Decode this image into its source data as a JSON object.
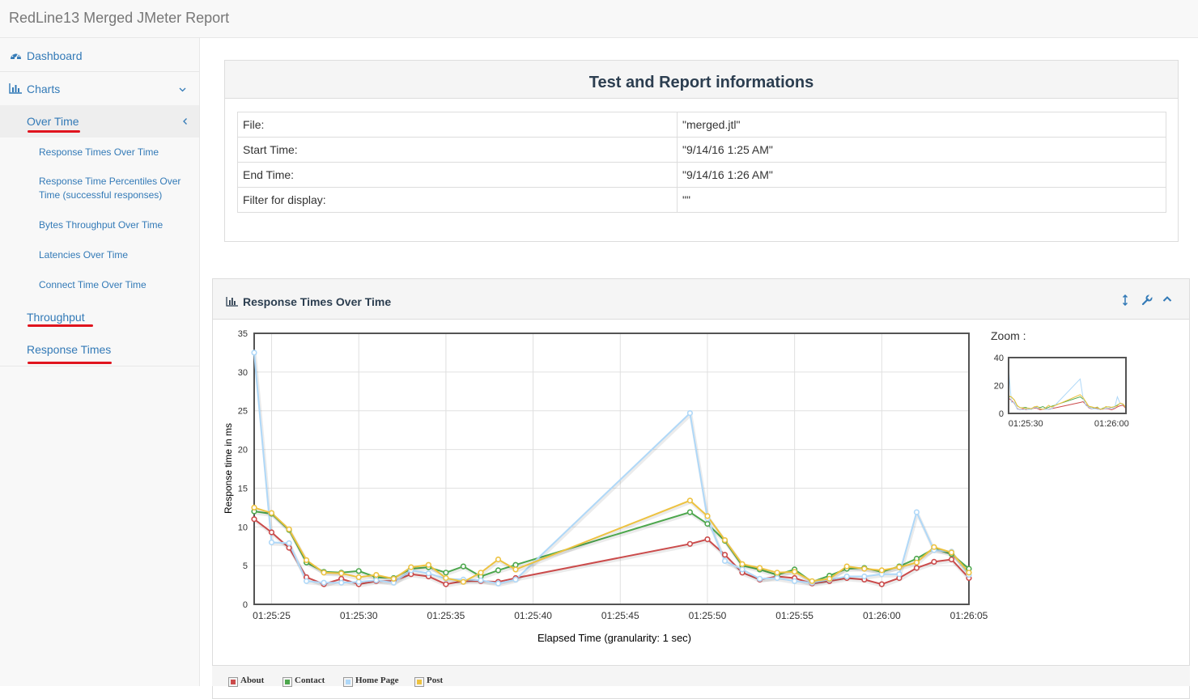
{
  "app": {
    "title": "RedLine13 Merged JMeter Report"
  },
  "sidebar": {
    "dashboard": "Dashboard",
    "charts": "Charts",
    "over_time": "Over Time",
    "sub_items": [
      "Response Times Over Time",
      "Response Time Percentiles Over Time (successful responses)",
      "Bytes Throughput Over Time",
      "Latencies Over Time",
      "Connect Time Over Time"
    ],
    "throughput": "Throughput",
    "response_times": "Response Times"
  },
  "info": {
    "title": "Test and Report informations",
    "rows": [
      {
        "key": "File:",
        "value": "\"merged.jtl\""
      },
      {
        "key": "Start Time:",
        "value": "\"9/14/16 1:25 AM\""
      },
      {
        "key": "End Time:",
        "value": "\"9/14/16 1:26 AM\""
      },
      {
        "key": "Filter for display:",
        "value": "\"\""
      }
    ]
  },
  "chart_panel": {
    "title": "Response Times Over Time",
    "zoom_label": "Zoom :"
  },
  "chart_data": {
    "type": "line",
    "xlabel": "Elapsed Time (granularity: 1 sec)",
    "ylabel": "Response time in ms",
    "ylim": [
      0,
      35
    ],
    "xlim": [
      "01:25:24",
      "01:26:05"
    ],
    "x_ticks": [
      "01:25:25",
      "01:25:30",
      "01:25:35",
      "01:25:40",
      "01:25:45",
      "01:25:50",
      "01:25:55",
      "01:26:00",
      "01:26:05"
    ],
    "y_ticks": [
      0,
      5,
      10,
      15,
      20,
      25,
      30,
      35
    ],
    "grid": true,
    "legend_position": "bottom",
    "x": [
      "01:25:24",
      "01:25:25",
      "01:25:26",
      "01:25:27",
      "01:25:28",
      "01:25:29",
      "01:25:30",
      "01:25:31",
      "01:25:32",
      "01:25:33",
      "01:25:34",
      "01:25:35",
      "01:25:36",
      "01:25:37",
      "01:25:38",
      "01:25:39",
      "01:25:49",
      "01:25:50",
      "01:25:51",
      "01:25:52",
      "01:25:53",
      "01:25:54",
      "01:25:55",
      "01:25:56",
      "01:25:57",
      "01:25:58",
      "01:25:59",
      "01:26:00",
      "01:26:01",
      "01:26:02",
      "01:26:03",
      "01:26:04",
      "01:26:05"
    ],
    "series": [
      {
        "name": "About",
        "color": "#cb4b4b",
        "values": [
          11,
          9.3,
          7.3,
          3.5,
          2.6,
          3.3,
          2.6,
          3.0,
          3.0,
          3.9,
          3.6,
          2.6,
          3.0,
          3.0,
          2.9,
          3.4,
          7.8,
          8.4,
          6.4,
          4.1,
          3.2,
          3.6,
          3.4,
          2.7,
          3.0,
          3.4,
          3.2,
          2.6,
          3.4,
          4.7,
          5.5,
          5.8,
          3.4
        ]
      },
      {
        "name": "Contact",
        "color": "#4da74d",
        "values": [
          12,
          11.7,
          9.6,
          5.4,
          4.2,
          4.1,
          4.3,
          3.5,
          3.4,
          4.6,
          4.8,
          4.1,
          4.9,
          3.6,
          4.4,
          5.1,
          11.9,
          10.4,
          8.2,
          5.0,
          4.5,
          3.8,
          4.5,
          2.9,
          3.7,
          4.6,
          4.7,
          4.2,
          4.9,
          5.9,
          7.2,
          6.5,
          4.6
        ]
      },
      {
        "name": "Home Page",
        "color": "#afd8f8",
        "values": [
          32.5,
          8,
          7.9,
          3.0,
          2.8,
          2.8,
          2.9,
          3.1,
          2.8,
          4.4,
          4.0,
          3.3,
          3.2,
          3.1,
          2.7,
          3.2,
          24.7,
          11.1,
          5.6,
          4.5,
          3.3,
          3.4,
          3.0,
          2.8,
          3.2,
          3.6,
          3.6,
          3.9,
          3.9,
          11.9,
          7.0,
          6.8,
          3.8
        ]
      },
      {
        "name": "Post",
        "color": "#edc240",
        "values": [
          12.5,
          11.8,
          9.7,
          5.7,
          4.1,
          4.0,
          3.5,
          3.8,
          3.3,
          4.8,
          5.1,
          3.4,
          2.9,
          4.1,
          5.8,
          4.5,
          13.4,
          11.4,
          8.3,
          5.2,
          4.7,
          4.1,
          4.2,
          3.0,
          3.3,
          4.9,
          4.6,
          4.4,
          4.8,
          5.4,
          7.4,
          6.7,
          4.1
        ]
      }
    ],
    "zoom": {
      "ylim": [
        0,
        40
      ],
      "y_ticks": [
        0,
        20,
        40
      ],
      "x_ticks": [
        "01:25:30",
        "01:26:00"
      ]
    }
  }
}
